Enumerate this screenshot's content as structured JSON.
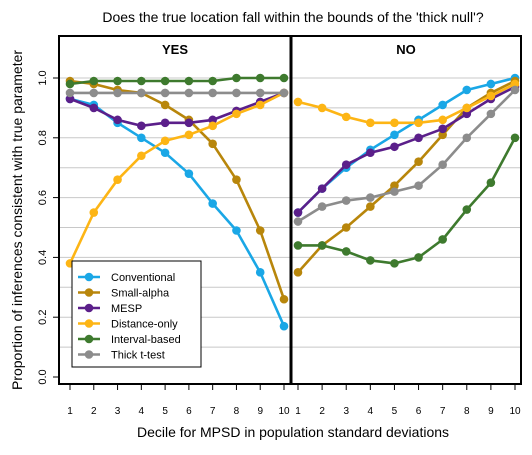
{
  "chart_data": {
    "type": "line",
    "title": "Does the true location fall within the bounds of the 'thick null'?",
    "xlabel": "Decile for MPSD in population standard deviations",
    "ylabel": "Proportion of inferences consistent with true parameter",
    "x": [
      1,
      2,
      3,
      4,
      5,
      6,
      7,
      8,
      9,
      10
    ],
    "x_tick_labels": [
      "1",
      "2",
      "3",
      "4",
      "5",
      "6",
      "7",
      "8",
      "9",
      "10"
    ],
    "ylim": [
      0,
      1
    ],
    "y_ticks": [
      0.0,
      0.2,
      0.4,
      0.6,
      0.8,
      1.0
    ],
    "y_tick_labels": [
      "0.0",
      "0.2",
      "0.4",
      "0.6",
      "0.8",
      "1.0"
    ],
    "grid": "horizontal",
    "legend_position": "bottom-left of left panel",
    "panels": [
      {
        "title": "YES",
        "series": [
          {
            "name": "Conventional",
            "color": "#1AA7E6",
            "values": [
              0.93,
              0.91,
              0.85,
              0.8,
              0.75,
              0.68,
              0.58,
              0.49,
              0.35,
              0.17
            ]
          },
          {
            "name": "Small-alpha",
            "color": "#B8860B",
            "values": [
              0.99,
              0.98,
              0.96,
              0.95,
              0.91,
              0.86,
              0.78,
              0.66,
              0.49,
              0.26
            ]
          },
          {
            "name": "MESP",
            "color": "#5B1F8A",
            "values": [
              0.93,
              0.9,
              0.86,
              0.84,
              0.85,
              0.85,
              0.86,
              0.89,
              0.92,
              0.95
            ]
          },
          {
            "name": "Distance-only",
            "color": "#FDB515",
            "values": [
              0.38,
              0.55,
              0.66,
              0.74,
              0.79,
              0.81,
              0.84,
              0.88,
              0.91,
              0.95
            ]
          },
          {
            "name": "Interval-based",
            "color": "#3E7A2E",
            "values": [
              0.98,
              0.99,
              0.99,
              0.99,
              0.99,
              0.99,
              0.99,
              1.0,
              1.0,
              1.0
            ]
          },
          {
            "name": "Thick t-test",
            "color": "#8C8C8C",
            "values": [
              0.95,
              0.95,
              0.95,
              0.95,
              0.95,
              0.95,
              0.95,
              0.95,
              0.95,
              0.95
            ]
          }
        ]
      },
      {
        "title": "NO",
        "series": [
          {
            "name": "Conventional",
            "color": "#1AA7E6",
            "values": [
              0.55,
              0.63,
              0.7,
              0.76,
              0.81,
              0.86,
              0.91,
              0.96,
              0.98,
              1.0
            ]
          },
          {
            "name": "Small-alpha",
            "color": "#B8860B",
            "values": [
              0.35,
              0.44,
              0.5,
              0.57,
              0.64,
              0.72,
              0.81,
              0.9,
              0.95,
              0.99
            ]
          },
          {
            "name": "MESP",
            "color": "#5B1F8A",
            "values": [
              0.55,
              0.63,
              0.71,
              0.75,
              0.77,
              0.8,
              0.83,
              0.88,
              0.93,
              0.97
            ]
          },
          {
            "name": "Distance-only",
            "color": "#FDB515",
            "values": [
              0.92,
              0.9,
              0.87,
              0.85,
              0.85,
              0.85,
              0.86,
              0.9,
              0.94,
              0.98
            ]
          },
          {
            "name": "Interval-based",
            "color": "#3E7A2E",
            "values": [
              0.44,
              0.44,
              0.42,
              0.39,
              0.38,
              0.4,
              0.46,
              0.56,
              0.65,
              0.8
            ]
          },
          {
            "name": "Thick t-test",
            "color": "#8C8C8C",
            "values": [
              0.52,
              0.57,
              0.59,
              0.6,
              0.62,
              0.64,
              0.71,
              0.8,
              0.88,
              0.96
            ]
          }
        ]
      }
    ]
  }
}
